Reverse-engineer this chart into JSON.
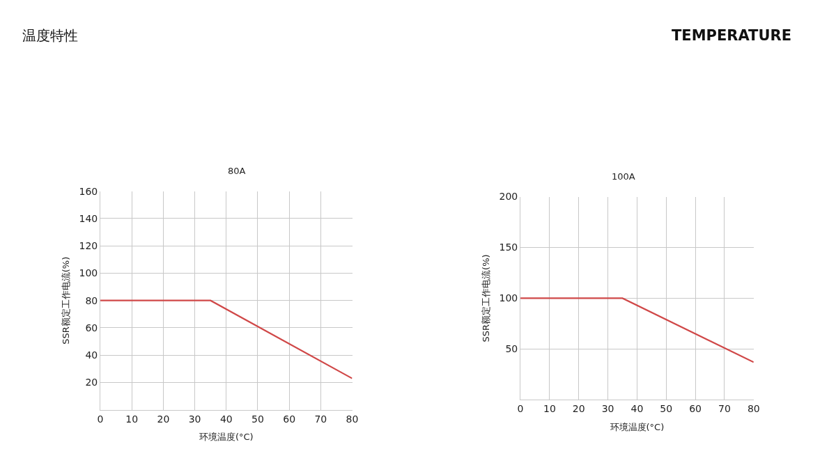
{
  "chart_data": [
    {
      "type": "line",
      "title": "80A",
      "xlabel": "环境温度(°C)",
      "ylabel": "SSR额定工作电流(%)",
      "annotations": [
        "温度特性",
        "TEMPERATURE"
      ],
      "series": [
        {
          "color": "#d04848",
          "x": [
            0,
            35,
            80
          ],
          "values": [
            80,
            80,
            23
          ]
        }
      ],
      "xlim": [
        0,
        80
      ],
      "xticks": [
        0,
        10,
        20,
        30,
        40,
        50,
        60,
        70,
        80
      ],
      "ylim": [
        0,
        160
      ],
      "yticks": [
        20,
        40,
        60,
        80,
        100,
        120,
        140,
        160
      ],
      "grid": true,
      "marker": "none",
      "line_style": "solid"
    },
    {
      "type": "line",
      "title": "100A",
      "xlabel": "环境温度(°C)",
      "ylabel": "SSR额定工作电流(%)",
      "series": [
        {
          "color": "#d04848",
          "x": [
            0,
            35,
            80
          ],
          "values": [
            100,
            100,
            37
          ]
        }
      ],
      "xlim": [
        0,
        80
      ],
      "xticks": [
        0,
        10,
        20,
        30,
        40,
        50,
        60,
        70,
        80
      ],
      "ylim": [
        0,
        200
      ],
      "yticks": [
        50,
        100,
        150,
        200
      ],
      "grid": true,
      "marker": "none",
      "line_style": "solid"
    }
  ]
}
